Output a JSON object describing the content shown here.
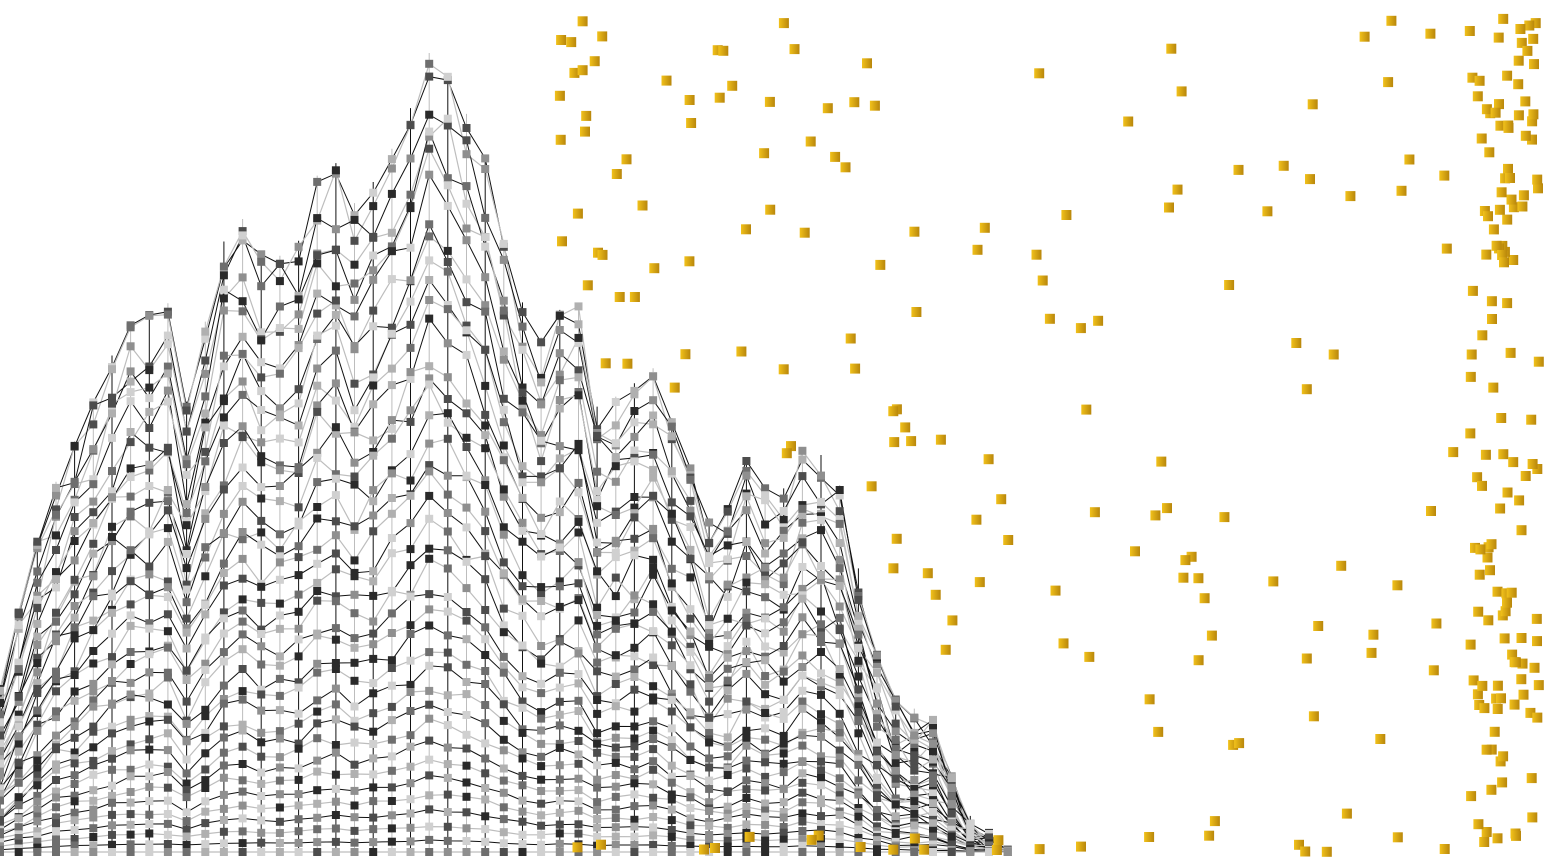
{
  "colors": {
    "background": "#ffffff",
    "line_dark": "#111111",
    "line_light": "#bdbdbd",
    "marker_gold": "#e0ab10",
    "marker_gold_shade": "#b8860b",
    "marker_grey_levels": [
      "#2a2a2a",
      "#4d4d4d",
      "#6e6e6e",
      "#8f8f8f",
      "#b0b0b0",
      "#d0d0d0"
    ]
  },
  "chart_data": {
    "type": "line",
    "title": "",
    "xlabel": "",
    "ylabel": "",
    "grid": false,
    "legend": "none",
    "axes_visible": false,
    "xlim": [
      0,
      100
    ],
    "ylim": [
      0,
      100
    ],
    "markers": "square",
    "envelope": {
      "x": [
        0,
        3,
        5,
        8,
        11,
        12,
        15,
        17,
        19,
        21,
        23,
        26,
        28,
        29,
        31,
        33,
        35,
        37,
        38,
        40,
        42,
        46,
        48,
        50,
        52,
        54,
        57,
        60,
        62,
        65,
        66,
        69,
        71,
        75,
        79,
        85,
        90,
        100
      ],
      "y": [
        20,
        42,
        50,
        63,
        66,
        54,
        78,
        71,
        72,
        85,
        77,
        87,
        98,
        92,
        85,
        68,
        61,
        69,
        53,
        55,
        58,
        38,
        47,
        42,
        50,
        44,
        19,
        16,
        5,
        0,
        0,
        0,
        0,
        0,
        0,
        0,
        0,
        0
      ]
    },
    "series_count": 40,
    "scatter": {
      "name": "",
      "color": "#e0ab10",
      "x_range": [
        36,
        99
      ],
      "y_range": [
        0,
        100
      ],
      "count": 300,
      "dense_band_x": [
        94.5,
        99
      ]
    }
  }
}
